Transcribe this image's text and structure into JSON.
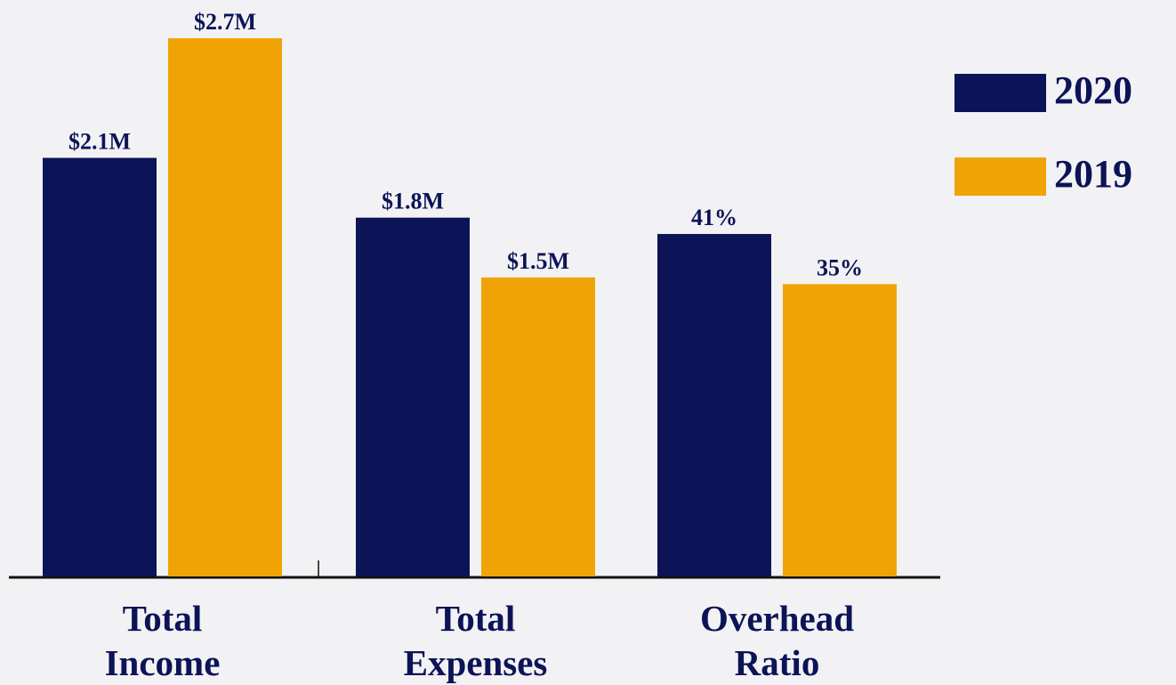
{
  "chart_data": {
    "type": "bar",
    "categories": [
      "Total Income",
      "Total Expenses",
      "Overhead Ratio"
    ],
    "series": [
      {
        "name": "2020",
        "color": "#0c1457",
        "values": [
          2100000,
          1800000,
          41
        ],
        "value_labels": [
          "$2.1M",
          "$1.8M",
          "41%"
        ]
      },
      {
        "name": "2019",
        "color": "#f0a305",
        "values": [
          2700000,
          1500000,
          35
        ],
        "value_labels": [
          "$2.7M",
          "$1.5M",
          "35%"
        ]
      }
    ]
  }
}
